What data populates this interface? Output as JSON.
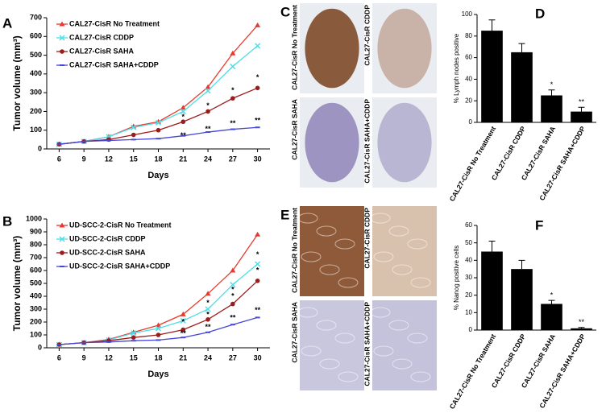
{
  "chart_data": [
    {
      "type": "line",
      "panel": "A",
      "xlabel": "Days",
      "ylabel": "Tumor volume (mm³)",
      "x": [
        6,
        9,
        12,
        15,
        18,
        21,
        24,
        27,
        30
      ],
      "xlim": [
        4.5,
        31.5
      ],
      "xticks": [
        6,
        9,
        12,
        15,
        18,
        21,
        24,
        27,
        30
      ],
      "ylim": [
        0,
        700
      ],
      "yticks": [
        0,
        100,
        200,
        300,
        400,
        500,
        600,
        700
      ],
      "legend": "upper left",
      "series": [
        {
          "name": "CAL27-CisR No Treatment",
          "color": "#e8392f",
          "marker": "triangle",
          "values": [
            25,
            40,
            65,
            120,
            145,
            220,
            330,
            510,
            660
          ]
        },
        {
          "name": "CAL27-CisR CDDP",
          "color": "#4fdde6",
          "marker": "cross",
          "values": [
            25,
            40,
            65,
            115,
            140,
            200,
            310,
            440,
            550
          ]
        },
        {
          "name": "CAL27-CisR SAHA",
          "color": "#9b1c1c",
          "marker": "circle",
          "values": [
            25,
            40,
            50,
            75,
            100,
            145,
            200,
            270,
            325
          ]
        },
        {
          "name": "CAL27-CisR SAHA+CDDP",
          "color": "#4646d8",
          "marker": "dash",
          "values": [
            25,
            40,
            45,
            50,
            55,
            70,
            90,
            105,
            115
          ]
        }
      ],
      "annotations": [
        {
          "text": "*",
          "x": 21,
          "y": 170
        },
        {
          "text": "**",
          "x": 21,
          "y": 70
        },
        {
          "text": "*",
          "x": 24,
          "y": 230
        },
        {
          "text": "**",
          "x": 24,
          "y": 105
        },
        {
          "text": "*",
          "x": 27,
          "y": 310
        },
        {
          "text": "**",
          "x": 27,
          "y": 135
        },
        {
          "text": "*",
          "x": 30,
          "y": 380
        },
        {
          "text": "**",
          "x": 30,
          "y": 150
        }
      ]
    },
    {
      "type": "line",
      "panel": "B",
      "xlabel": "Days",
      "ylabel": "Tumor volume (mm³)",
      "x": [
        6,
        9,
        12,
        15,
        18,
        21,
        24,
        27,
        30
      ],
      "xlim": [
        4.5,
        31.5
      ],
      "xticks": [
        6,
        9,
        12,
        15,
        18,
        21,
        24,
        27,
        30
      ],
      "ylim": [
        0,
        1000
      ],
      "yticks": [
        0,
        100,
        200,
        300,
        400,
        500,
        600,
        700,
        800,
        900,
        1000
      ],
      "legend": "upper left",
      "series": [
        {
          "name": "UD-SCC-2-CisR No Treatment",
          "color": "#e8392f",
          "marker": "triangle",
          "values": [
            25,
            40,
            65,
            120,
            175,
            260,
            420,
            600,
            880
          ]
        },
        {
          "name": "UD-SCC-2-CisR CDDP",
          "color": "#4fdde6",
          "marker": "cross",
          "values": [
            25,
            40,
            60,
            115,
            150,
            210,
            300,
            490,
            650
          ]
        },
        {
          "name": "UD-SCC-2-CisR SAHA",
          "color": "#9b1c1c",
          "marker": "circle",
          "values": [
            25,
            40,
            55,
            80,
            100,
            140,
            220,
            340,
            520
          ]
        },
        {
          "name": "UD-SCC-2-CisR SAHA+CDDP",
          "color": "#4646d8",
          "marker": "dash",
          "values": [
            25,
            40,
            45,
            55,
            60,
            80,
            120,
            180,
            235
          ]
        }
      ],
      "annotations": [
        {
          "text": "*",
          "x": 21,
          "y": 200
        },
        {
          "text": "**",
          "x": 21,
          "y": 110
        },
        {
          "text": "*",
          "x": 24,
          "y": 345
        },
        {
          "text": "*",
          "x": 24,
          "y": 255
        },
        {
          "text": "**",
          "x": 24,
          "y": 160
        },
        {
          "text": "*",
          "x": 27,
          "y": 450
        },
        {
          "text": "*",
          "x": 27,
          "y": 400
        },
        {
          "text": "**",
          "x": 27,
          "y": 230
        },
        {
          "text": "*",
          "x": 30,
          "y": 720
        },
        {
          "text": "*",
          "x": 30,
          "y": 600
        },
        {
          "text": "**",
          "x": 30,
          "y": 290
        }
      ]
    },
    {
      "type": "bar",
      "panel": "D",
      "ylabel": "% Lymph nodes positive",
      "color": "#000000",
      "categories": [
        "CAL27-CisR No Treatment",
        "CAL27-CisR CDDP",
        "CAL27-CisR SAHA",
        "CAL27-CisR SAHA+CDDP"
      ],
      "values": [
        85,
        65,
        25,
        10
      ],
      "errors": [
        10,
        8,
        5,
        4
      ],
      "ylim": [
        0,
        100
      ],
      "yticks": [
        0,
        20,
        40,
        60,
        80,
        100
      ],
      "annotations": [
        {
          "text": "*",
          "category": 2
        },
        {
          "text": "**",
          "category": 3
        }
      ]
    },
    {
      "type": "bar",
      "panel": "F",
      "ylabel": "% Nanog positive cells",
      "color": "#000000",
      "categories": [
        "CAL27-CisR No Treatment",
        "CAL27-CisR CDDP",
        "CAL27-CisR SAHA",
        "CAL27-CisR SAHA+CDDP"
      ],
      "values": [
        45,
        35,
        15,
        1
      ],
      "errors": [
        6,
        5,
        2,
        0.5
      ],
      "ylim": [
        0,
        60
      ],
      "yticks": [
        0,
        10,
        20,
        30,
        40,
        50,
        60
      ],
      "annotations": [
        {
          "text": "*",
          "category": 2
        },
        {
          "text": "**",
          "category": 3
        }
      ]
    }
  ],
  "images": [
    {
      "panel": "C",
      "captions": [
        "CAL27-CisR No Treatment",
        "CAL27-CisR CDDP",
        "CAL27-CisR SAHA",
        "CAL27-CisR SAHA+CDDP"
      ]
    },
    {
      "panel": "E",
      "captions": [
        "CAL27-CisR No Treatment",
        "CAL27-CisR CDDP",
        "CAL27-CisR SAHA",
        "CAL27-CisR SAHA+CDDP"
      ]
    }
  ]
}
